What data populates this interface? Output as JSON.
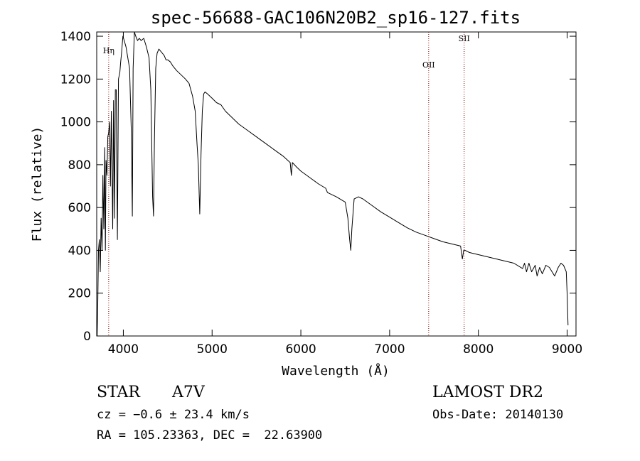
{
  "chart_data": {
    "type": "line",
    "title": "spec-56688-GAC106N20B2_sp16-127.fits",
    "xlabel": "Wavelength (Å)",
    "ylabel": "Flux (relative)",
    "xlim": [
      3700,
      9100
    ],
    "ylim": [
      0,
      1420
    ],
    "xticks": [
      4000,
      5000,
      6000,
      7000,
      8000,
      9000
    ],
    "yticks": [
      0,
      200,
      400,
      600,
      800,
      1000,
      1200,
      1400
    ],
    "grid": false,
    "legend": "none",
    "series": [
      {
        "x": [
          3705,
          3712,
          3720,
          3730,
          3740,
          3750,
          3760,
          3770,
          3780,
          3790,
          3798,
          3805,
          3815,
          3825,
          3835,
          3845,
          3855,
          3865,
          3880,
          3890,
          3900,
          3910,
          3920,
          3933,
          3945,
          3960,
          3970,
          3980,
          3995,
          4010,
          4030,
          4050,
          4070,
          4090,
          4101,
          4110,
          4125,
          4140,
          4160,
          4180,
          4200,
          4230,
          4260,
          4290,
          4310,
          4330,
          4340,
          4350,
          4365,
          4380,
          4400,
          4420,
          4440,
          4460,
          4480,
          4500,
          4530,
          4560,
          4600,
          4650,
          4700,
          4740,
          4780,
          4810,
          4830,
          4845,
          4861,
          4875,
          4890,
          4905,
          4920,
          4950,
          5000,
          5050,
          5100,
          5150,
          5200,
          5250,
          5300,
          5400,
          5500,
          5600,
          5700,
          5800,
          5880,
          5893,
          5905,
          5950,
          6000,
          6100,
          6200,
          6280,
          6300,
          6400,
          6500,
          6530,
          6550,
          6563,
          6575,
          6600,
          6650,
          6700,
          6800,
          6900,
          7000,
          7100,
          7200,
          7300,
          7400,
          7500,
          7600,
          7700,
          7800,
          7820,
          7835,
          7850,
          7900,
          8000,
          8100,
          8200,
          8300,
          8400,
          8498,
          8520,
          8542,
          8570,
          8600,
          8640,
          8662,
          8690,
          8720,
          8760,
          8800,
          8830,
          8860,
          8900,
          8930,
          8960,
          8990,
          9000,
          9010
        ],
        "y": [
          0,
          150,
          400,
          450,
          300,
          550,
          400,
          750,
          500,
          880,
          400,
          820,
          750,
          930,
          950,
          1000,
          700,
          1050,
          500,
          1100,
          550,
          1150,
          1150,
          450,
          1200,
          1230,
          1280,
          1320,
          1400,
          1380,
          1350,
          1300,
          1250,
          950,
          560,
          1250,
          1420,
          1400,
          1380,
          1390,
          1380,
          1390,
          1350,
          1300,
          1150,
          650,
          560,
          900,
          1250,
          1320,
          1340,
          1330,
          1320,
          1310,
          1290,
          1290,
          1280,
          1260,
          1240,
          1220,
          1200,
          1180,
          1120,
          1050,
          900,
          800,
          570,
          850,
          1050,
          1130,
          1140,
          1130,
          1110,
          1090,
          1080,
          1050,
          1030,
          1010,
          990,
          960,
          930,
          900,
          870,
          840,
          810,
          750,
          810,
          790,
          770,
          740,
          710,
          690,
          670,
          650,
          625,
          550,
          450,
          400,
          500,
          640,
          650,
          640,
          610,
          580,
          555,
          530,
          505,
          485,
          470,
          455,
          440,
          430,
          420,
          360,
          400,
          400,
          390,
          380,
          370,
          360,
          350,
          340,
          315,
          340,
          300,
          340,
          300,
          330,
          280,
          320,
          290,
          330,
          320,
          300,
          280,
          320,
          340,
          330,
          300,
          200,
          50
        ]
      }
    ],
    "lines": [
      {
        "label": "Hη",
        "x": 3835
      },
      {
        "label": "OII",
        "x": 7440
      },
      {
        "label": "SII",
        "x": 7840
      }
    ]
  },
  "info": {
    "object_type": "STAR",
    "spectral_class": "A7V",
    "survey": "LAMOST DR2",
    "redshift": "cz = −0.6 ± 23.4 km/s",
    "obs_date": "Obs-Date: 20140130",
    "coords": "RA = 105.23363, DEC =  22.63900"
  },
  "colors": {
    "spectrum": "#000000",
    "line_markers": "#8b0000"
  }
}
